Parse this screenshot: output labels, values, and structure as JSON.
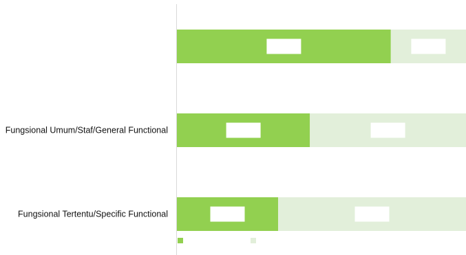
{
  "chart_data": {
    "type": "bar",
    "orientation": "horizontal",
    "stacked": true,
    "percent_stacked": true,
    "categories": [
      "",
      "Fungsional Umum/Staf/General Functional",
      "Fungsional Tertentu/Specific Functional"
    ],
    "series": [
      {
        "values": [
          74,
          46,
          35
        ],
        "color": "#92d050"
      },
      {
        "values": [
          26,
          54,
          65
        ],
        "color": "#e2efda"
      }
    ],
    "xlim": [
      0,
      100
    ],
    "grid": false,
    "legend_position": "bottom-left",
    "title": "",
    "xlabel": "",
    "ylabel": ""
  }
}
